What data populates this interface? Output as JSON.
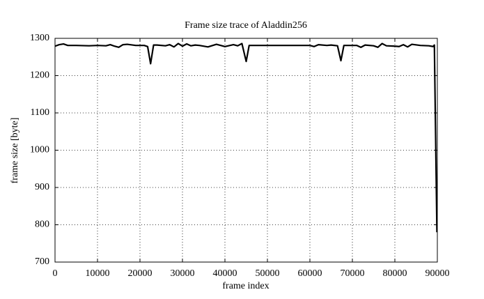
{
  "chart_data": {
    "type": "line",
    "title": "Frame size trace of Aladdin256",
    "x_label": "frame index",
    "y_label": "frame size [byte]",
    "xlim": [
      0,
      90000
    ],
    "ylim": [
      700,
      1300
    ],
    "xticks": [
      0,
      10000,
      20000,
      30000,
      40000,
      50000,
      60000,
      70000,
      80000,
      90000
    ],
    "yticks": [
      700,
      800,
      900,
      1000,
      1100,
      1200,
      1300
    ],
    "grid": true,
    "series": [
      {
        "color": "#000000",
        "x": [
          0,
          1000,
          2000,
          3000,
          5000,
          8000,
          10000,
          12000,
          13000,
          14000,
          15000,
          16000,
          17000,
          19000,
          21000,
          21800,
          22500,
          23200,
          24000,
          26000,
          27000,
          28000,
          29000,
          30000,
          31000,
          32000,
          33000,
          34000,
          36000,
          38000,
          39000,
          40000,
          42000,
          43000,
          44000,
          45000,
          45700,
          47000,
          50000,
          55000,
          60000,
          61000,
          62000,
          64000,
          65000,
          66500,
          67300,
          68000,
          70000,
          71000,
          72000,
          73000,
          75000,
          76000,
          77000,
          78000,
          80000,
          81000,
          82000,
          83000,
          84000,
          86000,
          88000,
          89000,
          89300,
          89900
        ],
        "values": [
          1279,
          1283,
          1285,
          1281,
          1281,
          1280,
          1281,
          1280,
          1283,
          1279,
          1276,
          1283,
          1284,
          1281,
          1281,
          1278,
          1232,
          1282,
          1282,
          1280,
          1283,
          1277,
          1286,
          1279,
          1285,
          1280,
          1282,
          1281,
          1277,
          1284,
          1281,
          1278,
          1283,
          1280,
          1286,
          1238,
          1281,
          1281,
          1281,
          1281,
          1281,
          1278,
          1283,
          1281,
          1282,
          1280,
          1240,
          1281,
          1281,
          1281,
          1276,
          1282,
          1280,
          1276,
          1286,
          1280,
          1279,
          1278,
          1283,
          1277,
          1284,
          1281,
          1280,
          1278,
          1282,
          780
        ]
      }
    ]
  }
}
